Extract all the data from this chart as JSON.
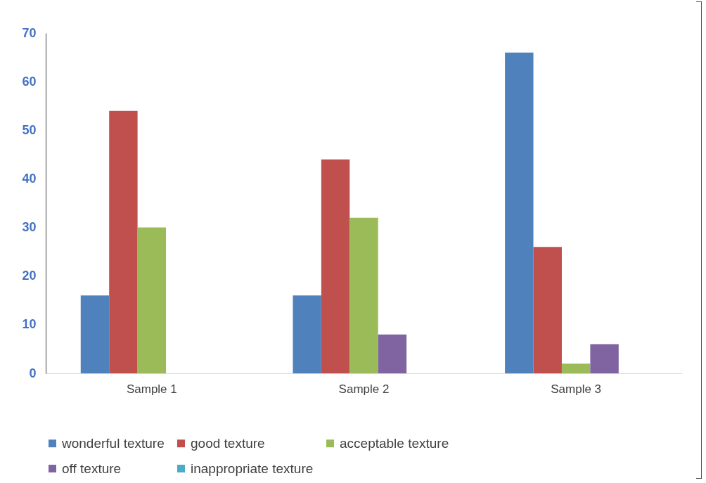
{
  "chart_data": {
    "type": "bar",
    "categories": [
      "Sample 1",
      "Sample 2",
      "Sample 3"
    ],
    "series": [
      {
        "name": "wonderful texture",
        "color": "#4f81bd",
        "values": [
          16,
          16,
          66
        ]
      },
      {
        "name": "good texture",
        "color": "#c0504d",
        "values": [
          54,
          44,
          26
        ]
      },
      {
        "name": "acceptable texture",
        "color": "#9bbb59",
        "values": [
          30,
          32,
          2
        ]
      },
      {
        "name": "off texture",
        "color": "#8064a2",
        "values": [
          0,
          8,
          6
        ]
      },
      {
        "name": "inappropriate texture",
        "color": "#4bacc6",
        "values": [
          0,
          0,
          0
        ]
      }
    ],
    "ylim": [
      0,
      70
    ],
    "yticks": [
      0,
      10,
      20,
      30,
      40,
      50,
      60,
      70
    ],
    "grid": false,
    "legend": "bottom"
  }
}
